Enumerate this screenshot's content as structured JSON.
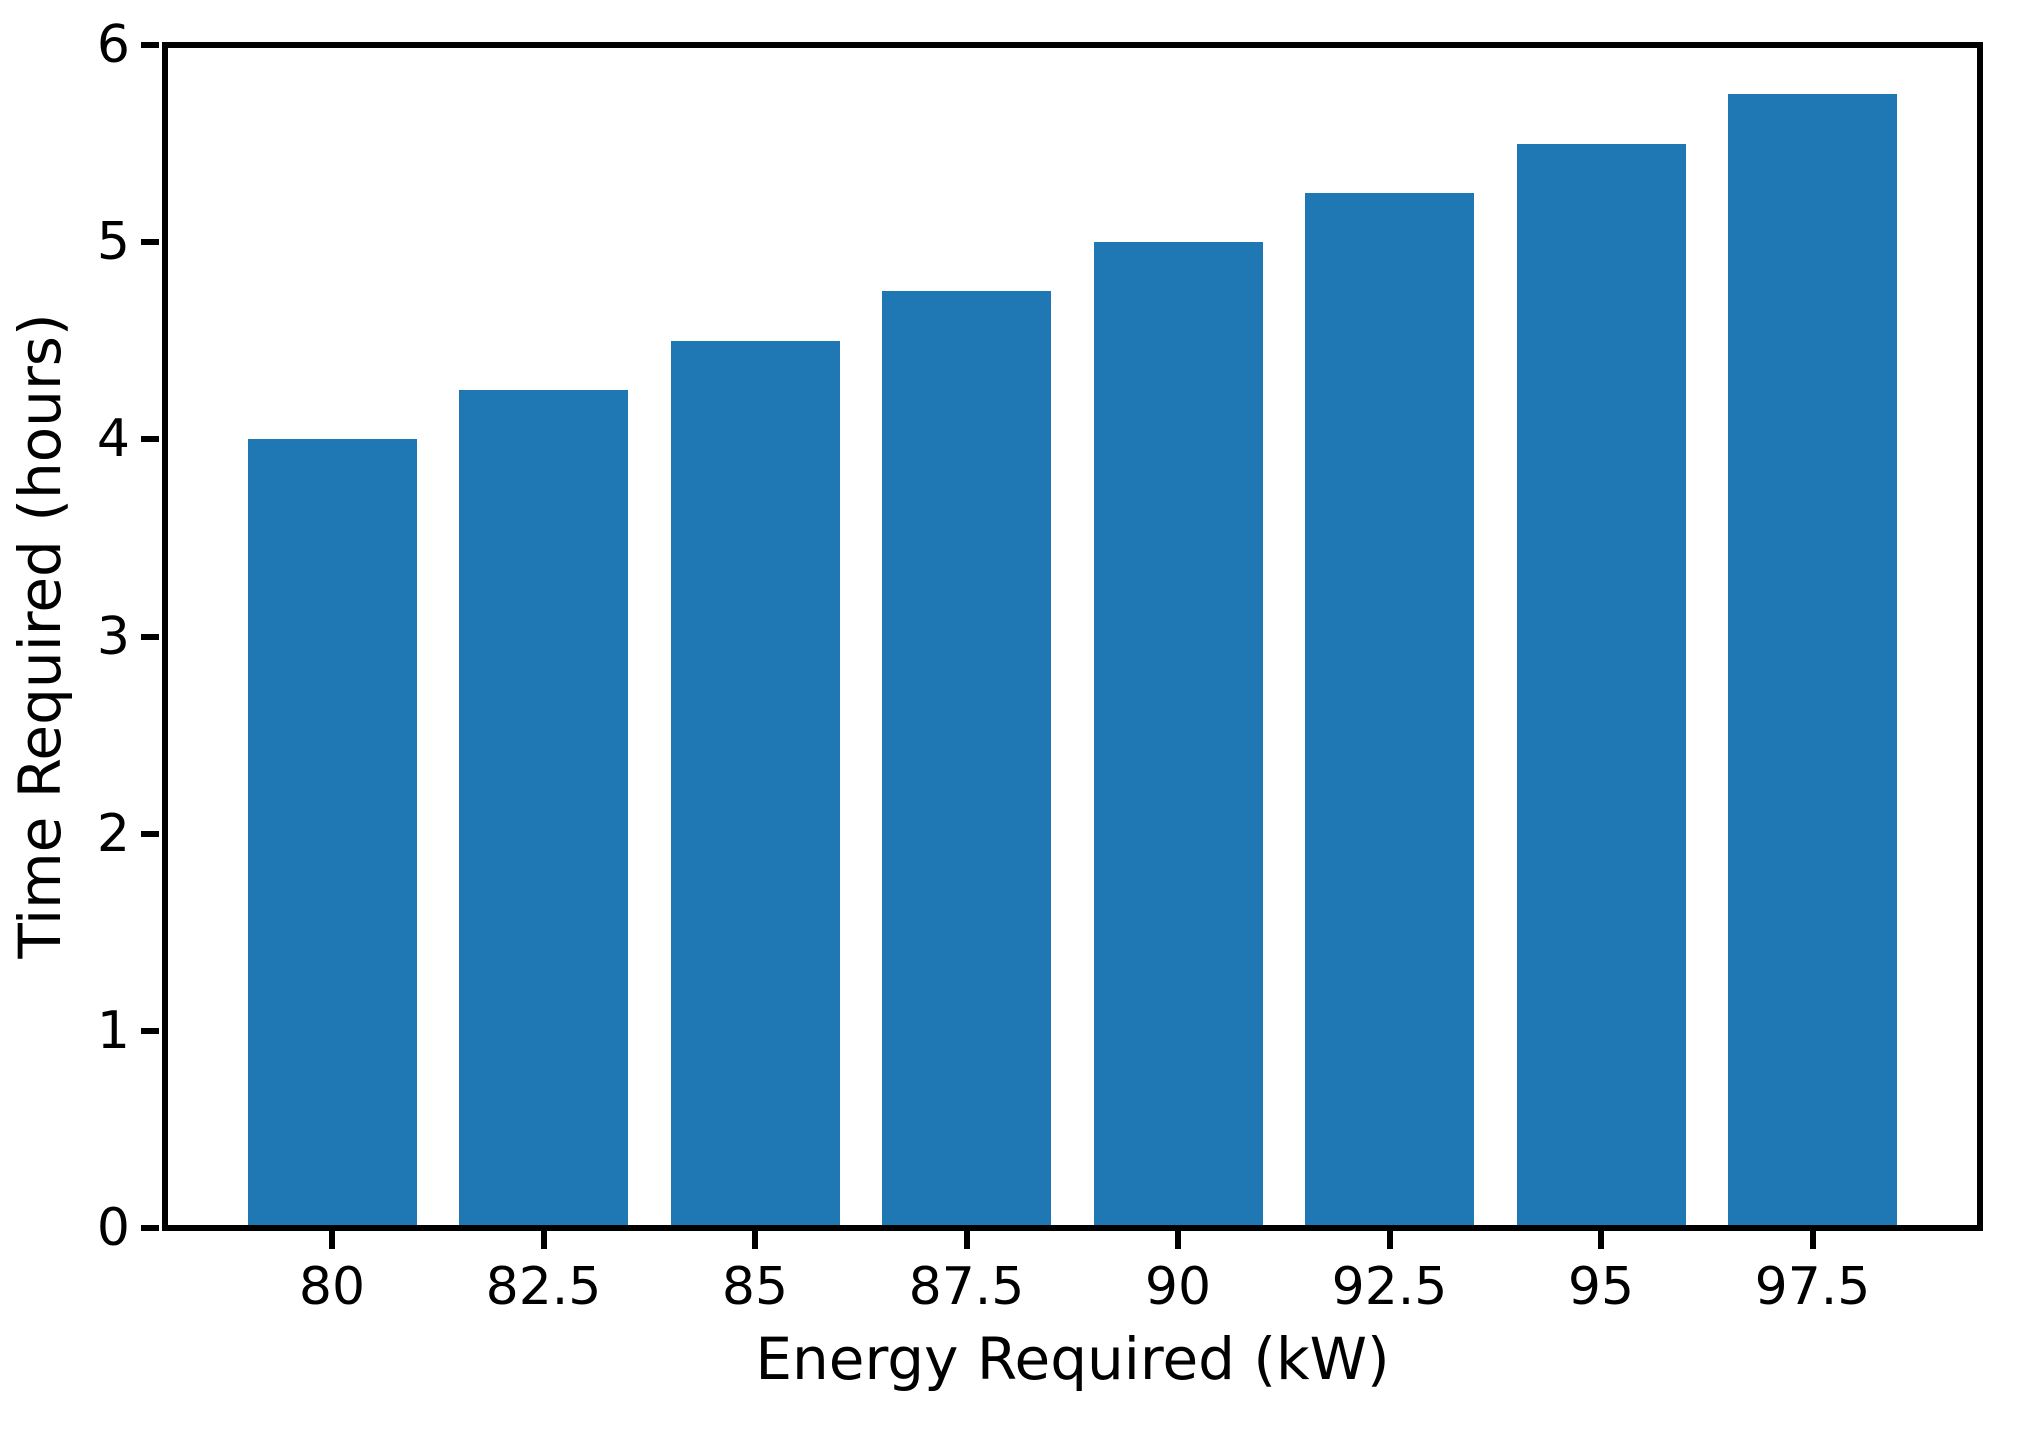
{
  "chart_data": {
    "type": "bar",
    "title": "",
    "xlabel": "Energy Required (kW)",
    "ylabel": "Time Required (hours)",
    "categories": [
      "80",
      "82.5",
      "85",
      "87.5",
      "90",
      "92.5",
      "95",
      "97.5"
    ],
    "values": [
      4.0,
      4.25,
      4.5,
      4.75,
      5.0,
      5.25,
      5.5,
      5.75
    ],
    "ylim": [
      0,
      6
    ],
    "yticks": [
      0,
      1,
      2,
      3,
      4,
      5,
      6
    ],
    "bar_color": "#1f77b4",
    "axis_color": "#000000",
    "background_color": "#ffffff",
    "grid": false,
    "legend": null
  }
}
